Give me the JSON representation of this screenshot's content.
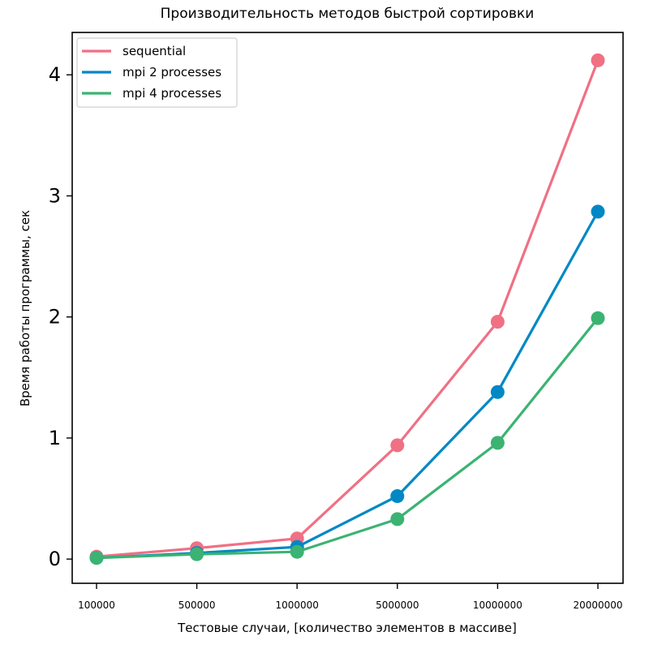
{
  "chart_data": {
    "type": "line",
    "title": "Производительность методов быстрой сортировки",
    "xlabel": "Тестовые случаи, [количество элементов в массиве]",
    "ylabel": "Время работы программы, сек",
    "categories": [
      "100000",
      "500000",
      "1000000",
      "5000000",
      "10000000",
      "20000000"
    ],
    "yticks": [
      "0",
      "1",
      "2",
      "3",
      "4"
    ],
    "ylim": [
      -0.2,
      4.35
    ],
    "grid": false,
    "legend_position": "top-left",
    "series": [
      {
        "name": "sequential",
        "color": "#f07084",
        "values": [
          0.02,
          0.09,
          0.17,
          0.94,
          1.96,
          4.12
        ]
      },
      {
        "name": "mpi 2 processes",
        "color": "#0088c4",
        "values": [
          0.01,
          0.05,
          0.1,
          0.52,
          1.38,
          2.87
        ]
      },
      {
        "name": "mpi 4 processes",
        "color": "#3bb372",
        "values": [
          0.01,
          0.04,
          0.06,
          0.33,
          0.96,
          1.99
        ]
      }
    ]
  }
}
